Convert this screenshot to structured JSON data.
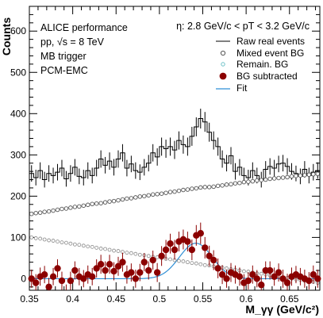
{
  "chart_data": {
    "type": "scatter",
    "xlabel": "M_γγ (GeV/c²)",
    "ylabel": "Counts",
    "xlim": [
      0.35,
      0.685
    ],
    "ylim": [
      -28,
      660
    ],
    "xticks": [
      "0.35",
      "0.4",
      "0.45",
      "0.5",
      "0.55",
      "0.6",
      "0.65"
    ],
    "yticks": [
      "0",
      "100",
      "200",
      "300",
      "400",
      "500",
      "600"
    ],
    "annotations": {
      "experiment": "ALICE performance",
      "system": "pp, √s = 8 TeV",
      "trigger": "MB trigger",
      "method": "PCM-EMC",
      "cut": "η: 2.8 GeV/c < pT < 3.2 GeV/c"
    },
    "legend_position": "top-right",
    "colors": {
      "raw": "#000000",
      "mixed": "#555555",
      "remain": "#6ec1c7",
      "subtracted": "#8b0000",
      "fit": "#2f8fd6"
    },
    "series": [
      {
        "name": "Raw real events",
        "style": "histogram",
        "x": [
          0.3525,
          0.3575,
          0.3625,
          0.3675,
          0.3725,
          0.3775,
          0.3825,
          0.3875,
          0.3925,
          0.3975,
          0.4025,
          0.4075,
          0.4125,
          0.4175,
          0.4225,
          0.4275,
          0.4325,
          0.4375,
          0.4425,
          0.4475,
          0.4525,
          0.4575,
          0.4625,
          0.4675,
          0.4725,
          0.4775,
          0.4825,
          0.4875,
          0.4925,
          0.4975,
          0.5025,
          0.5075,
          0.5125,
          0.5175,
          0.5225,
          0.5275,
          0.5325,
          0.5375,
          0.5425,
          0.5475,
          0.5525,
          0.5575,
          0.5625,
          0.5675,
          0.5725,
          0.5775,
          0.5825,
          0.5875,
          0.5925,
          0.5975,
          0.6025,
          0.6075,
          0.6125,
          0.6175,
          0.6225,
          0.6275,
          0.6325,
          0.6375,
          0.6425,
          0.6475,
          0.6525,
          0.6575,
          0.6625,
          0.6675,
          0.6725,
          0.6775,
          0.6825
        ],
        "y": [
          255,
          245,
          262,
          240,
          255,
          250,
          258,
          268,
          242,
          255,
          270,
          248,
          245,
          262,
          250,
          268,
          290,
          275,
          285,
          270,
          290,
          305,
          268,
          278,
          262,
          258,
          270,
          280,
          305,
          295,
          320,
          315,
          320,
          312,
          335,
          325,
          320,
          345,
          368,
          388,
          380,
          355,
          335,
          320,
          290,
          280,
          298,
          260,
          270,
          250,
          245,
          262,
          250,
          240,
          265,
          272,
          268,
          278,
          280,
          272,
          260,
          255,
          248,
          265,
          250,
          258,
          262
        ],
        "err": [
          20,
          19,
          20,
          19,
          20,
          19,
          20,
          20,
          19,
          20,
          20,
          19,
          19,
          20,
          19,
          20,
          21,
          20,
          21,
          20,
          21,
          21,
          20,
          20,
          20,
          19,
          20,
          20,
          21,
          21,
          22,
          22,
          22,
          22,
          22,
          22,
          22,
          23,
          23,
          24,
          24,
          23,
          22,
          22,
          21,
          20,
          21,
          20,
          20,
          19,
          19,
          20,
          19,
          19,
          20,
          20,
          20,
          20,
          20,
          20,
          20,
          19,
          19,
          20,
          19,
          20,
          20
        ]
      },
      {
        "name": "Mixed event BG",
        "style": "open-circle",
        "x": [
          0.3525,
          0.3575,
          0.3625,
          0.3675,
          0.3725,
          0.3775,
          0.3825,
          0.3875,
          0.3925,
          0.3975,
          0.4025,
          0.4075,
          0.4125,
          0.4175,
          0.4225,
          0.4275,
          0.4325,
          0.4375,
          0.4425,
          0.4475,
          0.4525,
          0.4575,
          0.4625,
          0.4675,
          0.4725,
          0.4775,
          0.4825,
          0.4875,
          0.4925,
          0.4975,
          0.5025,
          0.5075,
          0.5125,
          0.5175,
          0.5225,
          0.5275,
          0.5325,
          0.5375,
          0.5425,
          0.5475,
          0.5525,
          0.5575,
          0.5625,
          0.5675,
          0.5725,
          0.5775,
          0.5825,
          0.5875,
          0.5925,
          0.5975,
          0.6025,
          0.6075,
          0.6125,
          0.6175,
          0.6225,
          0.6275,
          0.6325,
          0.6375,
          0.6425,
          0.6475,
          0.6525,
          0.6575,
          0.6625,
          0.6675,
          0.6725,
          0.6775,
          0.6825
        ],
        "y": [
          157,
          159,
          160,
          162,
          163,
          165,
          167,
          169,
          170,
          172,
          174,
          175,
          177,
          179,
          181,
          182,
          183,
          185,
          187,
          188,
          190,
          192,
          194,
          195,
          197,
          199,
          200,
          202,
          204,
          205,
          206,
          208,
          210,
          211,
          213,
          215,
          216,
          218,
          219,
          221,
          222,
          222,
          223,
          225,
          226,
          228,
          229,
          231,
          232,
          234,
          235,
          236,
          238,
          239,
          240,
          242,
          243,
          244,
          245,
          246,
          248,
          249,
          250,
          251,
          252,
          253,
          254
        ]
      },
      {
        "name": "Remain. BG",
        "style": "open-circle",
        "x": [
          0.3525,
          0.3575,
          0.3625,
          0.3675,
          0.3725,
          0.3775,
          0.3825,
          0.3875,
          0.3925,
          0.3975,
          0.4025,
          0.4075,
          0.4125,
          0.4175,
          0.4225,
          0.4275,
          0.4325,
          0.4375,
          0.4425,
          0.4475,
          0.4525,
          0.4575,
          0.4625,
          0.4675,
          0.4725,
          0.4775,
          0.4825,
          0.4875,
          0.4925,
          0.4975,
          0.5025,
          0.5075,
          0.5125,
          0.5175,
          0.5225,
          0.5275,
          0.5325,
          0.5375,
          0.5425,
          0.5475,
          0.5525,
          0.5575,
          0.5625,
          0.5675,
          0.5725,
          0.5775,
          0.5825,
          0.5875,
          0.5925,
          0.5975,
          0.6025,
          0.6075,
          0.6125,
          0.6175,
          0.6225,
          0.6275,
          0.6325,
          0.6375,
          0.6425,
          0.6475,
          0.6525,
          0.6575,
          0.6625,
          0.6675,
          0.6725,
          0.6775,
          0.6825
        ],
        "y": [
          100,
          98,
          97,
          95,
          93,
          92,
          90,
          88,
          87,
          85,
          83,
          82,
          80,
          78,
          77,
          75,
          73,
          72,
          70,
          68,
          67,
          65,
          63,
          62,
          60,
          58,
          57,
          55,
          53,
          52,
          50,
          48,
          47,
          45,
          43,
          42,
          40,
          38,
          37,
          35,
          33,
          32,
          30,
          28,
          27,
          25,
          23,
          22,
          20,
          18,
          17,
          15,
          13,
          12,
          10,
          8,
          7,
          5,
          3,
          2,
          0,
          -2,
          -3,
          -5,
          -7,
          -8,
          -10
        ]
      },
      {
        "name": "BG subtracted",
        "style": "filled-circle",
        "x": [
          0.3525,
          0.3575,
          0.3625,
          0.3675,
          0.3725,
          0.3775,
          0.3825,
          0.3875,
          0.3925,
          0.3975,
          0.4025,
          0.4075,
          0.4125,
          0.4175,
          0.4225,
          0.4275,
          0.4325,
          0.4375,
          0.4425,
          0.4475,
          0.4525,
          0.4575,
          0.4625,
          0.4675,
          0.4725,
          0.4775,
          0.4825,
          0.4875,
          0.4925,
          0.4975,
          0.5025,
          0.5075,
          0.5125,
          0.5175,
          0.5225,
          0.5275,
          0.5325,
          0.5375,
          0.5425,
          0.5475,
          0.5525,
          0.5575,
          0.5625,
          0.5675,
          0.5725,
          0.5775,
          0.5825,
          0.5875,
          0.5925,
          0.5975,
          0.6025,
          0.6075,
          0.6125,
          0.6175,
          0.6225,
          0.6275,
          0.6325,
          0.6375,
          0.6425,
          0.6475,
          0.6525,
          0.6575,
          0.6625,
          0.6675,
          0.6725,
          0.6775,
          0.6825
        ],
        "y": [
          0,
          -10,
          5,
          10,
          -20,
          5,
          25,
          -5,
          -35,
          -5,
          20,
          5,
          0,
          10,
          5,
          25,
          35,
          20,
          35,
          18,
          30,
          40,
          10,
          15,
          0,
          15,
          40,
          20,
          45,
          15,
          55,
          70,
          85,
          70,
          90,
          95,
          90,
          70,
          105,
          110,
          75,
          55,
          45,
          25,
          10,
          0,
          15,
          10,
          5,
          -10,
          -5,
          10,
          0,
          -15,
          20,
          20,
          5,
          15,
          0,
          -10,
          5,
          10,
          5,
          0,
          -5,
          10,
          0
        ],
        "err": [
          22,
          21,
          22,
          21,
          22,
          21,
          22,
          22,
          21,
          22,
          22,
          21,
          21,
          22,
          21,
          22,
          23,
          22,
          23,
          22,
          23,
          23,
          22,
          22,
          22,
          21,
          22,
          22,
          23,
          23,
          24,
          24,
          24,
          24,
          24,
          24,
          24,
          25,
          25,
          26,
          26,
          25,
          24,
          24,
          23,
          22,
          23,
          22,
          22,
          21,
          21,
          22,
          21,
          21,
          22,
          22,
          22,
          22,
          22,
          22,
          22,
          21,
          21,
          22,
          21,
          22,
          22
        ]
      },
      {
        "name": "Fit",
        "style": "line",
        "function": "gaussian",
        "amplitude": 86,
        "mean": 0.542,
        "sigma": 0.019
      }
    ]
  }
}
